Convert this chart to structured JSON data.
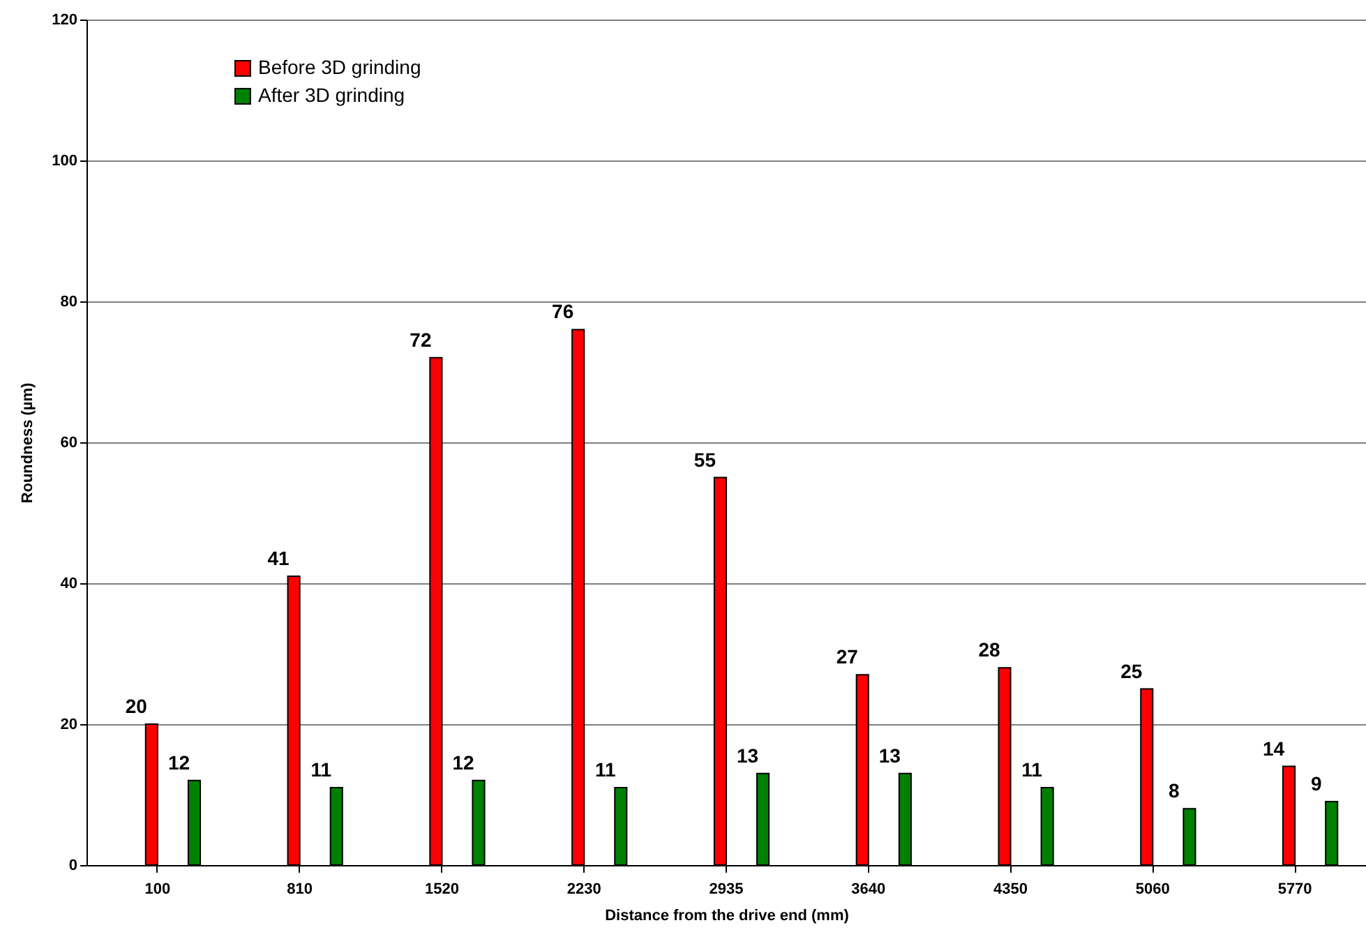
{
  "chart_data": {
    "type": "bar",
    "xlabel": "Distance from the drive end (mm)",
    "ylabel": "Roundness (µm)",
    "categories": [
      "100",
      "810",
      "1520",
      "2230",
      "2935",
      "3640",
      "4350",
      "5060",
      "5770"
    ],
    "series": [
      {
        "name": "Before 3D grinding",
        "color": "#ff0000",
        "values": [
          20,
          41,
          72,
          76,
          55,
          27,
          28,
          25,
          14
        ]
      },
      {
        "name": "After 3D grinding",
        "color": "#008000",
        "values": [
          12,
          11,
          12,
          11,
          13,
          13,
          11,
          8,
          9
        ]
      }
    ],
    "ylim": [
      0,
      120
    ],
    "yticks": [
      0,
      20,
      40,
      60,
      80,
      100,
      120
    ],
    "grid": "y",
    "legend": "top left",
    "data_labels": true
  }
}
